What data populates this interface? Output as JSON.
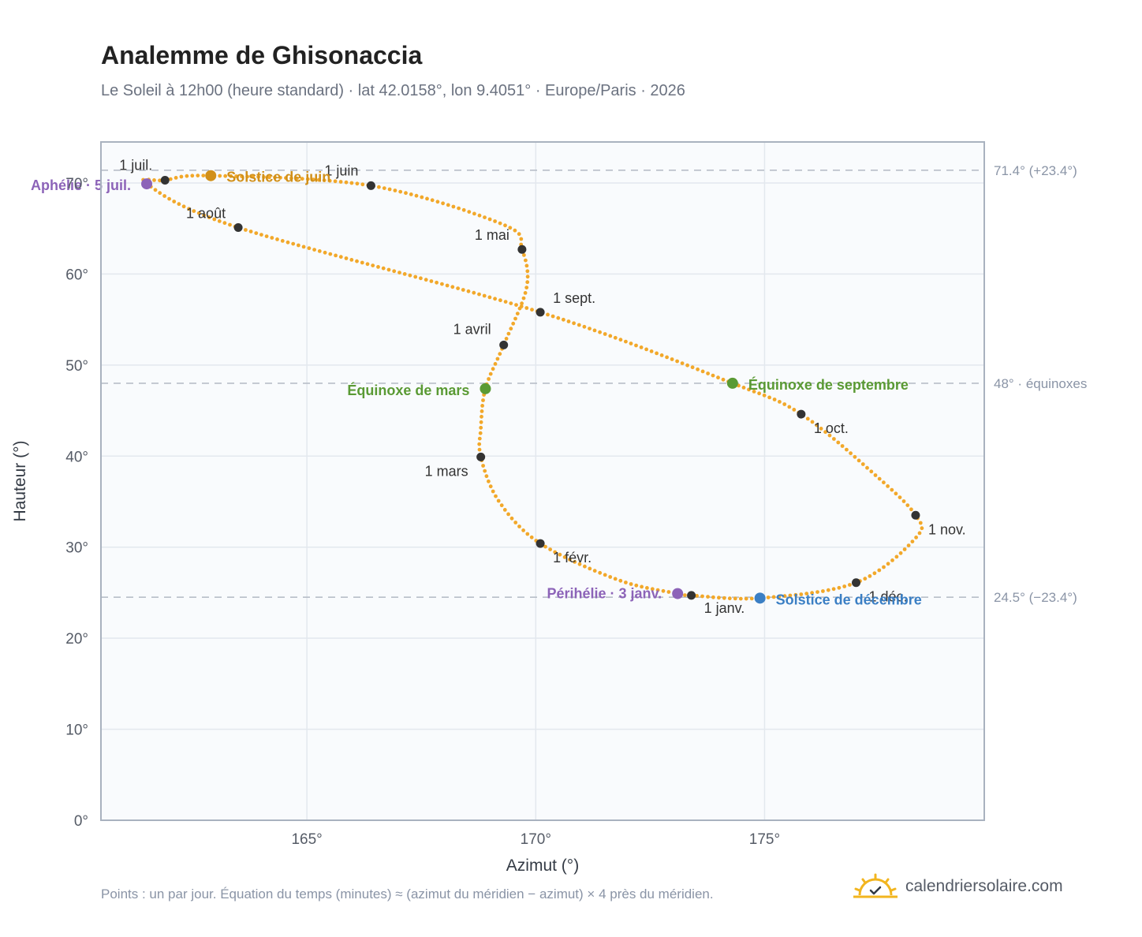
{
  "title": "Analemme de Ghisonaccia",
  "subtitle": "Le Soleil à 12h00 (heure standard) · lat 42.0158°, lon 9.4051° · Europe/Paris · 2026",
  "footnote": "Points : un par jour. Équation du temps (minutes) ≈ (azimut du méridien − azimut) × 4 près du méridien.",
  "brand": "calendriersolaire.com",
  "colors": {
    "curve": "#f2a82a",
    "month_point": "#333333",
    "solstice_june": "#d1901a",
    "solstice_december": "#3b7fc4",
    "equinox": "#5a9a34",
    "apsis": "#8c63b8",
    "reference_line": "#b8bec8",
    "plot_bg": "#f9fbfd",
    "grid": "#e3e8ee",
    "frame": "#a9b2bf"
  },
  "chart_data": {
    "type": "scatter",
    "xlabel": "Azimut (°)",
    "ylabel": "Hauteur (°)",
    "xlim": [
      160.5,
      179.8
    ],
    "ylim": [
      0,
      74.5
    ],
    "x_ticks": [
      165,
      170,
      175
    ],
    "x_tick_labels": [
      "165°",
      "170°",
      "175°"
    ],
    "y_ticks": [
      0,
      10,
      20,
      30,
      40,
      50,
      60,
      70
    ],
    "y_tick_labels": [
      "0°",
      "10°",
      "20°",
      "30°",
      "40°",
      "50°",
      "60°",
      "70°"
    ],
    "grid": true,
    "reference_lines": [
      {
        "y": 71.4,
        "label": "71.4° (+23.4°)"
      },
      {
        "y": 48.0,
        "label": "48° · équinoxes"
      },
      {
        "y": 24.5,
        "label": "24.5° (−23.4°)"
      }
    ],
    "monthly_points": [
      {
        "label": "1 janv.",
        "azimuth": 173.4,
        "altitude": 24.7
      },
      {
        "label": "1 févr.",
        "azimuth": 170.1,
        "altitude": 30.4
      },
      {
        "label": "1 mars",
        "azimuth": 168.8,
        "altitude": 39.9
      },
      {
        "label": "1 avril",
        "azimuth": 169.3,
        "altitude": 52.2
      },
      {
        "label": "1 mai",
        "azimuth": 169.7,
        "altitude": 62.7
      },
      {
        "label": "1 juin",
        "azimuth": 166.4,
        "altitude": 69.7
      },
      {
        "label": "1 juil.",
        "azimuth": 161.9,
        "altitude": 70.3
      },
      {
        "label": "1 août",
        "azimuth": 163.5,
        "altitude": 65.1
      },
      {
        "label": "1 sept.",
        "azimuth": 170.1,
        "altitude": 55.8
      },
      {
        "label": "1 oct.",
        "azimuth": 175.8,
        "altitude": 44.6
      },
      {
        "label": "1 nov.",
        "azimuth": 178.3,
        "altitude": 33.5
      },
      {
        "label": "1 déc.",
        "azimuth": 177.0,
        "altitude": 26.1
      }
    ],
    "events": [
      {
        "label": "Solstice de juin",
        "azimuth": 162.9,
        "altitude": 70.8,
        "color": "#d1901a"
      },
      {
        "label": "Solstice de décembre",
        "azimuth": 174.9,
        "altitude": 24.4,
        "color": "#3b7fc4"
      },
      {
        "label": "Équinoxe de mars",
        "azimuth": 168.9,
        "altitude": 47.4,
        "color": "#5a9a34"
      },
      {
        "label": "Équinoxe de septembre",
        "azimuth": 174.3,
        "altitude": 48.0,
        "color": "#5a9a34"
      },
      {
        "label": "Aphélie · 5 juil.",
        "azimuth": 161.5,
        "altitude": 69.9,
        "color": "#8c63b8"
      },
      {
        "label": "Périhélie · 3 janv.",
        "azimuth": 173.1,
        "altitude": 24.9,
        "color": "#8c63b8"
      }
    ],
    "daily_path_key_points": [
      {
        "azimuth": 173.4,
        "altitude": 24.7
      },
      {
        "azimuth": 174.9,
        "altitude": 24.4
      },
      {
        "azimuth": 177.0,
        "altitude": 26.1
      },
      {
        "azimuth": 178.3,
        "altitude": 31.0
      },
      {
        "azimuth": 178.3,
        "altitude": 33.5
      },
      {
        "azimuth": 177.4,
        "altitude": 38.0
      },
      {
        "azimuth": 175.8,
        "altitude": 44.6
      },
      {
        "azimuth": 174.3,
        "altitude": 48.0
      },
      {
        "azimuth": 170.1,
        "altitude": 55.8
      },
      {
        "azimuth": 163.5,
        "altitude": 65.1
      },
      {
        "azimuth": 161.5,
        "altitude": 69.9
      },
      {
        "azimuth": 161.9,
        "altitude": 70.3
      },
      {
        "azimuth": 162.9,
        "altitude": 70.8
      },
      {
        "azimuth": 166.4,
        "altitude": 69.7
      },
      {
        "azimuth": 169.3,
        "altitude": 65.4
      },
      {
        "azimuth": 169.7,
        "altitude": 62.7
      },
      {
        "azimuth": 169.8,
        "altitude": 58.5
      },
      {
        "azimuth": 169.3,
        "altitude": 52.2
      },
      {
        "azimuth": 168.9,
        "altitude": 47.4
      },
      {
        "azimuth": 168.8,
        "altitude": 43.0
      },
      {
        "azimuth": 168.8,
        "altitude": 39.9
      },
      {
        "azimuth": 169.2,
        "altitude": 35.0
      },
      {
        "azimuth": 170.1,
        "altitude": 30.4
      },
      {
        "azimuth": 171.8,
        "altitude": 26.4
      },
      {
        "azimuth": 173.1,
        "altitude": 24.9
      },
      {
        "azimuth": 173.4,
        "altitude": 24.7
      }
    ]
  }
}
